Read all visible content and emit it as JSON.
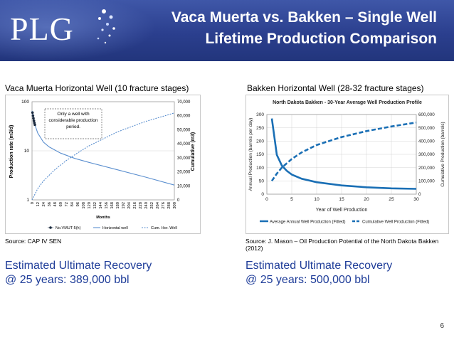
{
  "header": {
    "logo": "PLG",
    "title_line1": "Vaca Muerta vs. Bakken – Single Well",
    "title_line2": "Lifetime Production Comparison"
  },
  "left_panel": {
    "title": "Vaca Muerta Horizontal Well (10 fracture stages)",
    "source": "Source: CAP IV SEN",
    "eur_line1": "Estimated Ultimate Recovery",
    "eur_line2": "@ 25 years: 389,000 bbl"
  },
  "right_panel": {
    "title": "Bakken Horizontal Well (28-32 fracture stages)",
    "source": "Source: J. Mason – Oil Production Potential of the North Dakota Bakken (2012)",
    "eur_line1": "Estimated Ultimate Recovery",
    "eur_line2": "@ 25 years: 500,000 bbl"
  },
  "page_number": "6",
  "colors": {
    "header": "#2b3f8e",
    "accent_text": "#1f3d99",
    "series": "#1a6fb5"
  },
  "chart_data": [
    {
      "type": "line",
      "y_scale": "log",
      "ylim": [
        1,
        100
      ],
      "y_ticks": [
        "100",
        "10",
        "1"
      ],
      "y2lim": [
        0,
        70000
      ],
      "y2_ticks": [
        "70,000",
        "60,000",
        "50,000",
        "40,000",
        "30,000",
        "20,000",
        "10,000",
        "0"
      ],
      "xlim": [
        0,
        300
      ],
      "x_ticks": [
        "0",
        "12",
        "24",
        "36",
        "48",
        "60",
        "72",
        "84",
        "96",
        "108",
        "120",
        "132",
        "144",
        "156",
        "168",
        "180",
        "192",
        "204",
        "216",
        "228",
        "240",
        "252",
        "264",
        "276",
        "288",
        "300"
      ],
      "ylabel": "Production rate (m3/d)",
      "y2label": "Cumulative (m3)",
      "xlabel": "Months",
      "annotation": "Only a well with considerable production period.",
      "legend": [
        "No.VMUT-5(h)",
        "Horizontal well",
        "Cum. Hor. Well"
      ],
      "legend_position": "bottom",
      "series": [
        {
          "name": "No.VMUT-5(h)",
          "x": [
            1,
            2,
            3,
            4,
            5,
            6
          ],
          "values": [
            60,
            52,
            46,
            41,
            37,
            34
          ]
        },
        {
          "name": "Horizontal well",
          "x": [
            0,
            6,
            12,
            24,
            36,
            60,
            90,
            120,
            180,
            240,
            300
          ],
          "values": [
            65,
            34,
            23,
            15,
            12,
            9,
            7,
            5.8,
            4.1,
            2.9,
            2
          ]
        },
        {
          "name": "Cum. Hor. Well",
          "axis": "y2",
          "x": [
            0,
            12,
            24,
            48,
            72,
            96,
            120,
            180,
            240,
            300
          ],
          "values": [
            0,
            8000,
            13500,
            21500,
            28000,
            33500,
            38500,
            48500,
            56000,
            62000
          ]
        }
      ]
    },
    {
      "type": "line",
      "title": "North Dakota Bakken - 30-Year Average Well Production Profile",
      "xlabel": "Year of Well Production",
      "ylabel": "Annual Production (barrels per day)",
      "y2label": "Cumulative Production (barrels)",
      "xlim": [
        0,
        30
      ],
      "x_ticks": [
        "0",
        "5",
        "10",
        "15",
        "20",
        "25",
        "30"
      ],
      "ylim": [
        0,
        300
      ],
      "y_ticks": [
        "300",
        "250",
        "200",
        "150",
        "100",
        "50",
        "0"
      ],
      "y2lim": [
        0,
        600000
      ],
      "y2_ticks": [
        "600,000",
        "500,000",
        "400,000",
        "300,000",
        "200,000",
        "100,000",
        "0"
      ],
      "legend": [
        "Average Annual Well Production (Fitted)",
        "Cumulative Well Production (Fitted)"
      ],
      "legend_position": "bottom",
      "series": [
        {
          "name": "Average Annual Well Production (Fitted)",
          "x": [
            1,
            2,
            3,
            4,
            5,
            7,
            10,
            15,
            20,
            25,
            30
          ],
          "values": [
            285,
            148,
            108,
            88,
            74,
            58,
            45,
            33,
            26,
            22,
            20
          ]
        },
        {
          "name": "Cumulative Well Production (Fitted)",
          "axis": "y2",
          "x": [
            1,
            2,
            3,
            5,
            7,
            10,
            15,
            20,
            25,
            30
          ],
          "values": [
            100000,
            155000,
            200000,
            265000,
            315000,
            370000,
            430000,
            475000,
            510000,
            540000
          ]
        }
      ]
    }
  ]
}
